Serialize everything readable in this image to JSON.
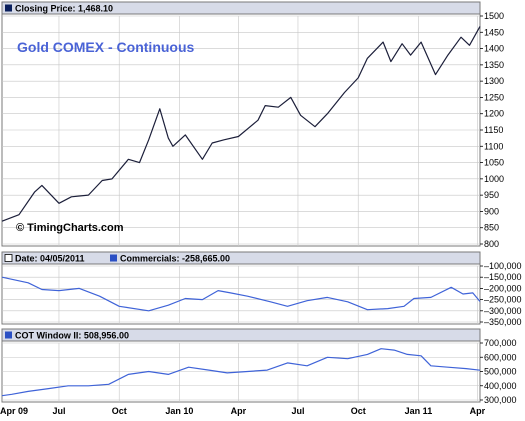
{
  "colors": {
    "header_bg": "#d7dbe8",
    "grid": "#c6c6c6",
    "price_line": "#1c1f3a",
    "blue_line": "#3f63d8",
    "title": "#4a63d6"
  },
  "x_axis": {
    "start": "2009-04-05",
    "end": "2011-04-05",
    "ticks": [
      {
        "label": "Apr 09",
        "date": "2009-04-01"
      },
      {
        "label": "Jul",
        "date": "2009-07-01"
      },
      {
        "label": "Oct",
        "date": "2009-10-01"
      },
      {
        "label": "Jan 10",
        "date": "2010-01-01"
      },
      {
        "label": "Apr",
        "date": "2010-04-01"
      },
      {
        "label": "Jul",
        "date": "2010-07-01"
      },
      {
        "label": "Oct",
        "date": "2010-10-01"
      },
      {
        "label": "Jan 11",
        "date": "2011-01-01"
      },
      {
        "label": "Apr",
        "date": "2011-04-01"
      }
    ]
  },
  "chart_data": [
    {
      "type": "line",
      "header": "Closing Price: 1,468.10",
      "title": "Gold COMEX - Continuous",
      "watermark": "© TimingCharts.com",
      "ylim": [
        800,
        1500
      ],
      "yticks": [
        800,
        850,
        900,
        950,
        1000,
        1050,
        1100,
        1150,
        1200,
        1250,
        1300,
        1350,
        1400,
        1450,
        1500
      ],
      "grid": true,
      "series": [
        {
          "x": [
            "2009-04-05",
            "2009-05-01",
            "2009-05-25",
            "2009-06-05",
            "2009-07-01",
            "2009-07-20",
            "2009-08-15",
            "2009-09-05",
            "2009-09-20",
            "2009-10-15",
            "2009-11-01",
            "2009-11-15",
            "2009-12-02",
            "2009-12-15",
            "2009-12-22",
            "2010-01-10",
            "2010-02-05",
            "2010-02-20",
            "2010-03-10",
            "2010-04-01",
            "2010-05-01",
            "2010-05-12",
            "2010-06-01",
            "2010-06-20",
            "2010-07-05",
            "2010-07-27",
            "2010-08-15",
            "2010-09-10",
            "2010-10-01",
            "2010-10-15",
            "2010-11-08",
            "2010-11-20",
            "2010-12-07",
            "2010-12-20",
            "2011-01-05",
            "2011-01-27",
            "2011-02-15",
            "2011-03-07",
            "2011-03-20",
            "2011-04-05"
          ],
          "values": [
            870,
            890,
            960,
            980,
            925,
            945,
            950,
            995,
            1000,
            1060,
            1050,
            1120,
            1215,
            1125,
            1100,
            1135,
            1060,
            1110,
            1120,
            1130,
            1180,
            1225,
            1220,
            1250,
            1195,
            1160,
            1200,
            1265,
            1310,
            1370,
            1420,
            1360,
            1415,
            1380,
            1420,
            1320,
            1380,
            1435,
            1410,
            1468
          ]
        }
      ]
    },
    {
      "type": "line",
      "header_date": "Date: 04/05/2011",
      "header_series": "Commercials: -258,665.00",
      "ylim": [
        -350000,
        -100000
      ],
      "yticks": [
        -100000,
        -150000,
        -200000,
        -250000,
        -300000,
        -350000
      ],
      "grid": true,
      "series": [
        {
          "x": [
            "2009-04-05",
            "2009-05-15",
            "2009-06-05",
            "2009-07-01",
            "2009-08-01",
            "2009-09-01",
            "2009-10-01",
            "2009-11-15",
            "2009-12-15",
            "2010-01-10",
            "2010-02-05",
            "2010-03-01",
            "2010-03-20",
            "2010-04-15",
            "2010-05-20",
            "2010-06-15",
            "2010-07-15",
            "2010-08-15",
            "2010-09-15",
            "2010-10-15",
            "2010-11-15",
            "2010-12-10",
            "2010-12-25",
            "2011-01-20",
            "2011-02-20",
            "2011-03-10",
            "2011-03-25",
            "2011-04-05"
          ],
          "values": [
            -150000,
            -175000,
            -205000,
            -210000,
            -200000,
            -235000,
            -280000,
            -300000,
            -275000,
            -245000,
            -250000,
            -210000,
            -220000,
            -235000,
            -260000,
            -280000,
            -255000,
            -240000,
            -260000,
            -295000,
            -290000,
            -280000,
            -245000,
            -240000,
            -195000,
            -225000,
            -220000,
            -258665
          ]
        }
      ]
    },
    {
      "type": "line",
      "header_series": "COT Window II: 508,956.00",
      "ylim": [
        300000,
        700000
      ],
      "yticks": [
        300000,
        400000,
        500000,
        600000,
        700000
      ],
      "grid": true,
      "series": [
        {
          "x": [
            "2009-04-05",
            "2009-04-20",
            "2009-05-15",
            "2009-06-15",
            "2009-07-15",
            "2009-08-15",
            "2009-09-15",
            "2009-10-15",
            "2009-11-15",
            "2009-12-15",
            "2010-01-15",
            "2010-02-15",
            "2010-03-15",
            "2010-04-15",
            "2010-05-15",
            "2010-06-15",
            "2010-07-15",
            "2010-08-15",
            "2010-09-15",
            "2010-10-15",
            "2010-11-05",
            "2010-11-25",
            "2010-12-15",
            "2011-01-05",
            "2011-01-20",
            "2011-02-15",
            "2011-03-15",
            "2011-04-05"
          ],
          "values": [
            330000,
            340000,
            360000,
            380000,
            400000,
            400000,
            410000,
            480000,
            500000,
            480000,
            530000,
            510000,
            490000,
            500000,
            510000,
            560000,
            540000,
            600000,
            590000,
            620000,
            660000,
            650000,
            620000,
            610000,
            540000,
            530000,
            520000,
            508956
          ]
        }
      ]
    }
  ]
}
